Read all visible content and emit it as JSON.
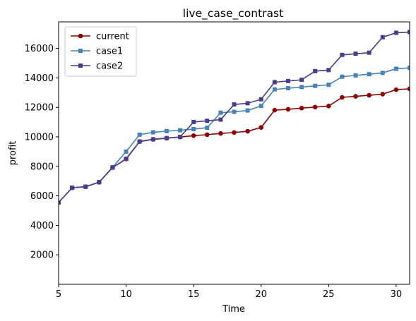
{
  "chart_data": {
    "type": "line",
    "title": "live_case_contrast",
    "xlabel": "Time",
    "ylabel": "profit",
    "xlim": [
      5,
      31
    ],
    "ylim": [
      0,
      17800
    ],
    "xticks": [
      5,
      10,
      15,
      20,
      25,
      30
    ],
    "yticks": [
      2000,
      4000,
      6000,
      8000,
      10000,
      12000,
      14000,
      16000
    ],
    "grid": false,
    "legend": "top-left",
    "x": [
      5,
      6,
      7,
      8,
      9,
      10,
      11,
      12,
      13,
      14,
      15,
      16,
      17,
      18,
      19,
      20,
      21,
      22,
      23,
      24,
      25,
      26,
      27,
      28,
      29,
      30,
      31
    ],
    "series": [
      {
        "name": "current",
        "color": "#8b0000",
        "marker": "circle",
        "values": [
          5550,
          6550,
          6620,
          6930,
          7920,
          8500,
          9680,
          9830,
          9910,
          9990,
          10080,
          10150,
          10230,
          10300,
          10380,
          10640,
          11810,
          11870,
          11950,
          12020,
          12090,
          12680,
          12750,
          12820,
          12900,
          13200,
          13260
        ]
      },
      {
        "name": "case1",
        "color": "#4682b4",
        "marker": "square",
        "values": [
          5550,
          6550,
          6620,
          6930,
          7950,
          9000,
          10150,
          10310,
          10390,
          10450,
          10530,
          10620,
          11640,
          11700,
          11790,
          12100,
          13220,
          13300,
          13380,
          13460,
          13530,
          14080,
          14170,
          14250,
          14340,
          14620,
          14680
        ]
      },
      {
        "name": "case2",
        "color": "#483d8b",
        "marker": "square",
        "values": [
          5550,
          6550,
          6620,
          6930,
          7920,
          8520,
          9690,
          9840,
          9920,
          10000,
          11010,
          11090,
          11170,
          12200,
          12280,
          12550,
          13710,
          13790,
          13870,
          14460,
          14530,
          15560,
          15640,
          15710,
          16760,
          17060,
          17110
        ]
      }
    ]
  }
}
